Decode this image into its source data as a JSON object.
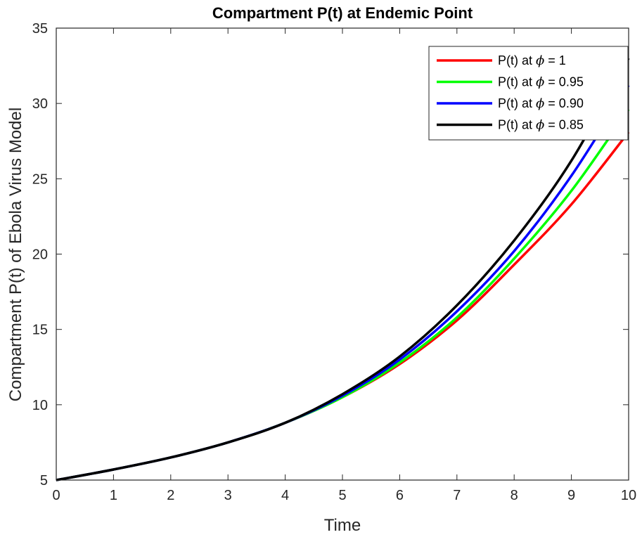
{
  "chart_data": {
    "type": "line",
    "title": "Compartment P(t) at Endemic Point",
    "xlabel": "Time",
    "ylabel": "Compartment P(t) of Ebola Virus Model",
    "xlim": [
      0,
      10
    ],
    "ylim": [
      5,
      35
    ],
    "xticks": [
      0,
      1,
      2,
      3,
      4,
      5,
      6,
      7,
      8,
      9,
      10
    ],
    "yticks": [
      5,
      10,
      15,
      20,
      25,
      30,
      35
    ],
    "legend_position": "top-right",
    "x": [
      0,
      1,
      2,
      3,
      4,
      5,
      6,
      7,
      8,
      9,
      10
    ],
    "series": [
      {
        "name": "P(t) at ϕ = 1",
        "prefix": "P(t) at ",
        "symbol": "ϕ",
        "suffix": " = 1",
        "color": "#ff0000",
        "values": [
          5.0,
          5.7,
          6.5,
          7.5,
          8.8,
          10.5,
          12.7,
          15.6,
          19.3,
          23.3,
          28.1
        ]
      },
      {
        "name": "P(t) at ϕ = 0.95",
        "prefix": "P(t) at ",
        "symbol": "ϕ",
        "suffix": " = 0.95",
        "color": "#00ff00",
        "values": [
          5.0,
          5.7,
          6.5,
          7.5,
          8.8,
          10.5,
          12.8,
          15.8,
          19.7,
          24.2,
          29.6
        ]
      },
      {
        "name": "P(t) at ϕ = 0.90",
        "prefix": "P(t) at ",
        "symbol": "ϕ",
        "suffix": " = 0.90",
        "color": "#0000ff",
        "values": [
          5.0,
          5.7,
          6.5,
          7.5,
          8.8,
          10.6,
          13.0,
          16.2,
          20.2,
          25.2,
          31.2
        ]
      },
      {
        "name": "P(t) at ϕ = 0.85",
        "prefix": "P(t) at ",
        "symbol": "ϕ",
        "suffix": " = 0.85",
        "color": "#000000",
        "values": [
          5.0,
          5.7,
          6.5,
          7.5,
          8.8,
          10.7,
          13.2,
          16.6,
          20.9,
          26.2,
          33.0
        ]
      }
    ]
  }
}
